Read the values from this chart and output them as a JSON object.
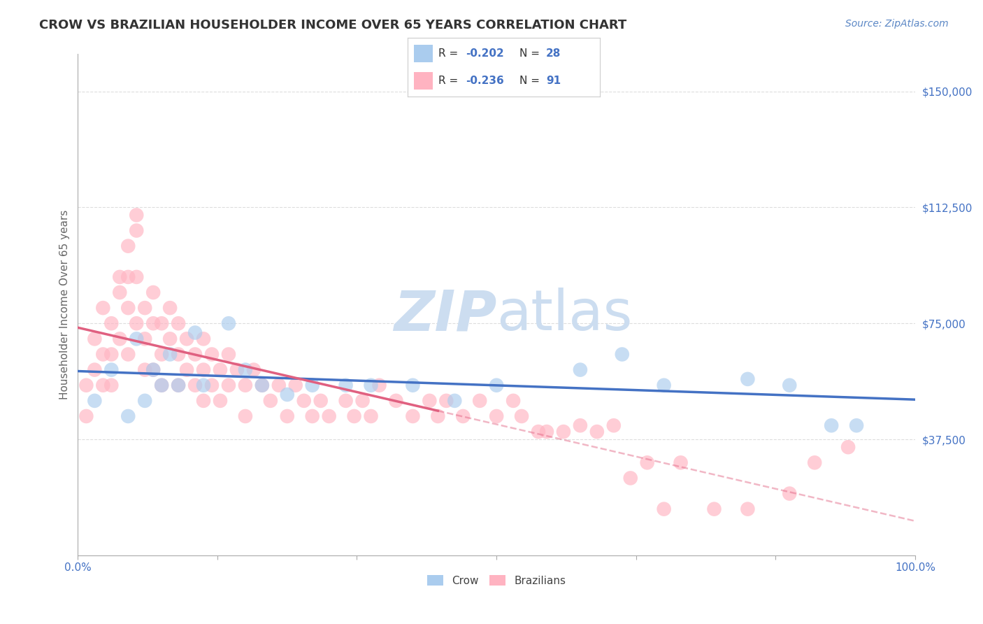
{
  "title": "CROW VS BRAZILIAN HOUSEHOLDER INCOME OVER 65 YEARS CORRELATION CHART",
  "source": "Source: ZipAtlas.com",
  "ylabel": "Householder Income Over 65 years",
  "ytick_labels": [
    "$37,500",
    "$75,000",
    "$112,500",
    "$150,000"
  ],
  "ytick_values": [
    37500,
    75000,
    112500,
    150000
  ],
  "ylim": [
    0,
    162000
  ],
  "xlim": [
    0.0,
    1.0
  ],
  "crow_R": "-0.202",
  "crow_N": "28",
  "brazilian_R": "-0.236",
  "brazilian_N": "91",
  "title_color": "#333333",
  "source_color": "#5b87c5",
  "axis_label_color": "#666666",
  "tick_color": "#4472c4",
  "crow_color": "#aaccee",
  "crow_line_color": "#4472c4",
  "brazilian_color": "#ffb3c1",
  "brazilian_line_color": "#e06080",
  "grid_color": "#dddddd",
  "watermark_color": "#ccddf0",
  "legend_text_color": "#333333",
  "legend_val_color": "#4472c4",
  "crow_scatter_x": [
    0.02,
    0.04,
    0.06,
    0.07,
    0.08,
    0.09,
    0.1,
    0.11,
    0.12,
    0.14,
    0.15,
    0.18,
    0.2,
    0.22,
    0.25,
    0.28,
    0.32,
    0.35,
    0.4,
    0.45,
    0.5,
    0.6,
    0.65,
    0.7,
    0.8,
    0.85,
    0.9,
    0.93
  ],
  "crow_scatter_y": [
    50000,
    60000,
    45000,
    70000,
    50000,
    60000,
    55000,
    65000,
    55000,
    72000,
    55000,
    75000,
    60000,
    55000,
    52000,
    55000,
    55000,
    55000,
    55000,
    50000,
    55000,
    60000,
    65000,
    55000,
    57000,
    55000,
    42000,
    42000
  ],
  "brazilian_scatter_x": [
    0.01,
    0.01,
    0.02,
    0.02,
    0.03,
    0.03,
    0.03,
    0.04,
    0.04,
    0.04,
    0.05,
    0.05,
    0.05,
    0.06,
    0.06,
    0.06,
    0.06,
    0.07,
    0.07,
    0.07,
    0.07,
    0.08,
    0.08,
    0.08,
    0.09,
    0.09,
    0.09,
    0.1,
    0.1,
    0.1,
    0.11,
    0.11,
    0.12,
    0.12,
    0.12,
    0.13,
    0.13,
    0.14,
    0.14,
    0.15,
    0.15,
    0.15,
    0.16,
    0.16,
    0.17,
    0.17,
    0.18,
    0.18,
    0.19,
    0.2,
    0.2,
    0.21,
    0.22,
    0.23,
    0.24,
    0.25,
    0.26,
    0.27,
    0.28,
    0.29,
    0.3,
    0.32,
    0.33,
    0.34,
    0.35,
    0.36,
    0.38,
    0.4,
    0.42,
    0.43,
    0.44,
    0.46,
    0.48,
    0.5,
    0.52,
    0.53,
    0.55,
    0.56,
    0.58,
    0.6,
    0.62,
    0.64,
    0.66,
    0.68,
    0.7,
    0.72,
    0.76,
    0.8,
    0.85,
    0.88,
    0.92
  ],
  "brazilian_scatter_y": [
    55000,
    45000,
    60000,
    70000,
    80000,
    65000,
    55000,
    75000,
    65000,
    55000,
    90000,
    85000,
    70000,
    100000,
    90000,
    80000,
    65000,
    110000,
    105000,
    90000,
    75000,
    80000,
    70000,
    60000,
    85000,
    75000,
    60000,
    75000,
    65000,
    55000,
    80000,
    70000,
    75000,
    65000,
    55000,
    70000,
    60000,
    65000,
    55000,
    70000,
    60000,
    50000,
    65000,
    55000,
    60000,
    50000,
    65000,
    55000,
    60000,
    55000,
    45000,
    60000,
    55000,
    50000,
    55000,
    45000,
    55000,
    50000,
    45000,
    50000,
    45000,
    50000,
    45000,
    50000,
    45000,
    55000,
    50000,
    45000,
    50000,
    45000,
    50000,
    45000,
    50000,
    45000,
    50000,
    45000,
    40000,
    40000,
    40000,
    42000,
    40000,
    42000,
    25000,
    30000,
    15000,
    30000,
    15000,
    15000,
    20000,
    30000,
    35000
  ]
}
